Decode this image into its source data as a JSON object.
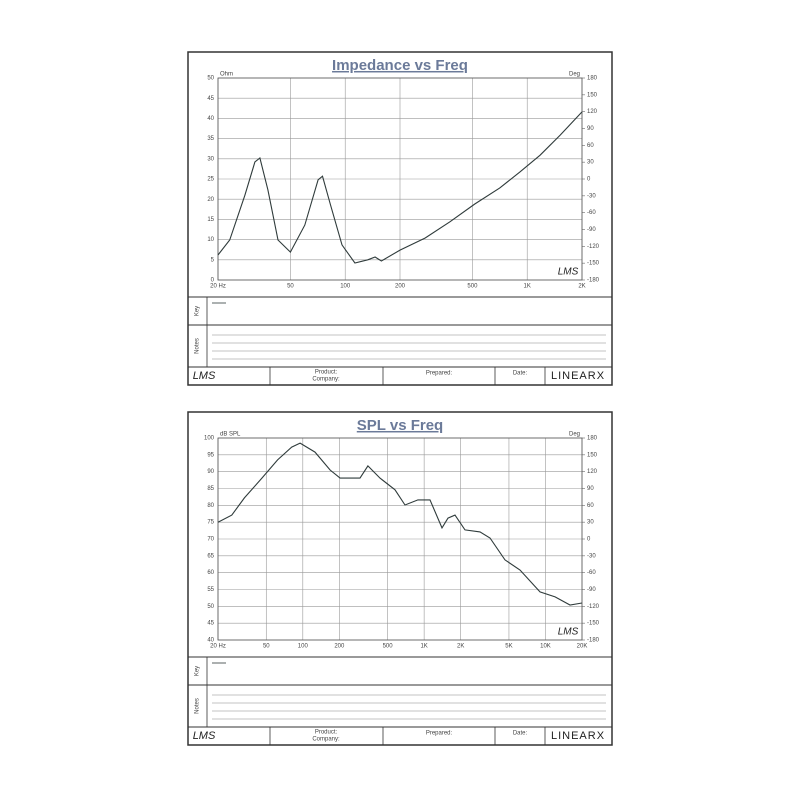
{
  "chart_data": [
    {
      "type": "line",
      "title": "Impedance vs Freq",
      "y_label": "Ohm",
      "y2_label": "Deg",
      "log_x": true,
      "grid": true,
      "color": "#2f3b3b",
      "x": [
        20,
        23.2,
        28.1,
        31.9,
        34,
        37.6,
        42.7,
        50,
        60,
        71,
        75,
        83,
        96,
        113,
        133,
        146,
        158,
        200,
        275,
        376,
        515,
        707,
        910,
        1177,
        1520,
        2000
      ],
      "values": [
        6.2,
        9.9,
        21.0,
        29.2,
        30.2,
        22.3,
        9.9,
        6.9,
        13.6,
        24.8,
        25.7,
        18.6,
        8.7,
        4.2,
        5.0,
        5.7,
        4.7,
        7.4,
        10.4,
        14.4,
        18.8,
        22.8,
        26.7,
        30.9,
        35.9,
        41.6
      ],
      "xlim": [
        20,
        2000
      ],
      "xticks": [
        {
          "value": 20,
          "label": "20 Hz"
        },
        50,
        100,
        200,
        500,
        {
          "value": 1000,
          "label": "1K"
        },
        {
          "value": 2000,
          "label": "2K"
        }
      ],
      "ylim": [
        0,
        50
      ],
      "yticks": [
        0,
        5,
        10,
        15,
        20,
        25,
        30,
        35,
        40,
        45,
        50
      ],
      "y2lim": [
        -180,
        180
      ],
      "y2ticks": [
        -180,
        -150,
        -120,
        -90,
        -60,
        -30,
        0,
        30,
        60,
        90,
        120,
        150,
        180
      ]
    },
    {
      "type": "line",
      "title": "SPL vs Freq",
      "y_label": "dB SPL",
      "y2_label": "Deg",
      "log_x": true,
      "grid": true,
      "color": "#2f3b3b",
      "x": [
        20,
        26,
        33,
        46,
        62,
        81,
        95,
        126,
        168,
        203,
        296,
        344,
        433,
        575,
        695,
        889,
        1117,
        1404,
        1573,
        1796,
        2172,
        2885,
        3491,
        4638,
        6164,
        9020,
        11996,
        15922,
        20000
      ],
      "values": [
        75.0,
        77.1,
        82.2,
        88.1,
        93.5,
        97.3,
        98.5,
        95.8,
        90.5,
        88.1,
        88.1,
        91.7,
        88.1,
        84.6,
        80.1,
        81.6,
        81.6,
        73.3,
        76.2,
        77.1,
        72.7,
        72.1,
        70.3,
        63.8,
        60.8,
        54.3,
        52.8,
        50.4,
        51.0
      ],
      "xlim": [
        20,
        20000
      ],
      "xticks": [
        {
          "value": 20,
          "label": "20 Hz"
        },
        50,
        100,
        200,
        500,
        {
          "value": 1000,
          "label": "1K"
        },
        {
          "value": 2000,
          "label": "2K"
        },
        {
          "value": 5000,
          "label": "5K"
        },
        {
          "value": 10000,
          "label": "10K"
        },
        {
          "value": 20000,
          "label": "20K"
        }
      ],
      "ylim": [
        40,
        100
      ],
      "yticks": [
        40,
        45,
        50,
        55,
        60,
        65,
        70,
        75,
        80,
        85,
        90,
        95,
        100
      ],
      "y2lim": [
        -180,
        180
      ],
      "y2ticks": [
        -180,
        -150,
        -120,
        -90,
        -60,
        -30,
        0,
        30,
        60,
        90,
        120,
        150,
        180
      ]
    }
  ],
  "labels": {
    "key": "Key",
    "notes": "Notes",
    "logo": "LMS",
    "product": "Product:",
    "company": "Company:",
    "prepared": "Prepared:",
    "date": "Date:",
    "brand": "LINEARX"
  }
}
